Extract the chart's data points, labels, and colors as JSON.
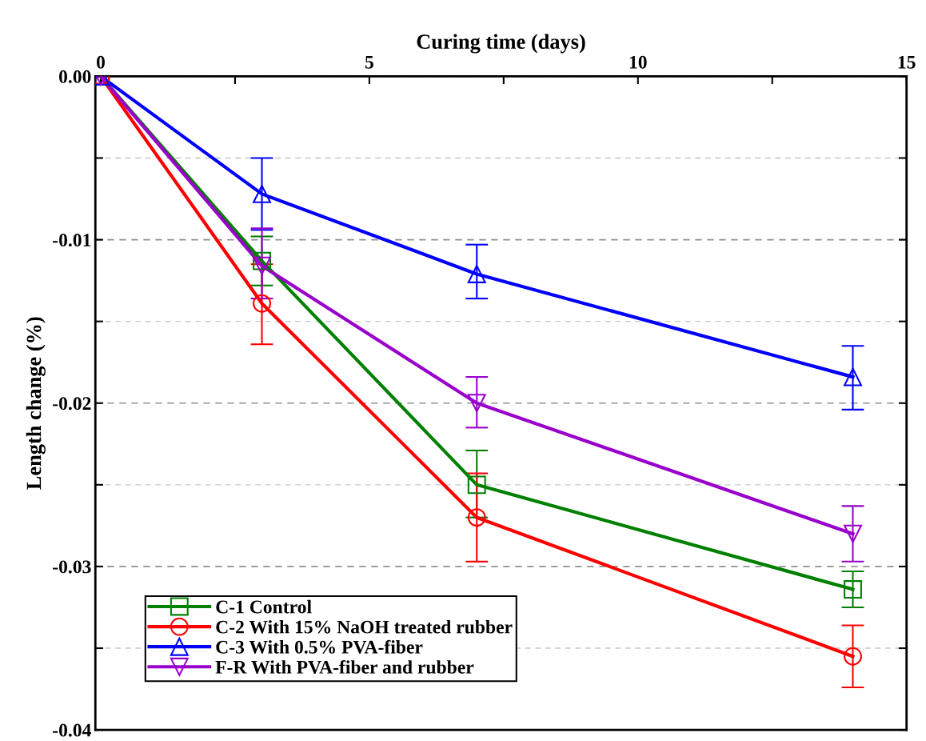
{
  "chart_data": {
    "type": "line",
    "xlabel": "Curing time (days)",
    "ylabel": "Length change (%)",
    "x": [
      0,
      3,
      7,
      14
    ],
    "xlim": [
      -0.1,
      15
    ],
    "xticks": [
      0,
      {
        "value": 2.5,
        "label": null
      },
      5,
      {
        "value": 7.5,
        "label": null
      },
      10,
      {
        "value": 12.5,
        "label": null
      },
      15
    ],
    "ylim": [
      -0.04,
      0
    ],
    "yticks": [
      {
        "value": 0,
        "label": "0.00"
      },
      {
        "value": -0.005,
        "label": null
      },
      -0.01,
      {
        "value": -0.015,
        "label": null
      },
      -0.02,
      {
        "value": -0.025,
        "label": null
      },
      -0.03,
      {
        "value": -0.035,
        "label": null
      },
      -0.04
    ],
    "grid": "y",
    "legend": "bottom left",
    "line_style": "solid",
    "series": [
      {
        "name": "C-1 Control",
        "color": "#008000",
        "marker": "square",
        "values": [
          0,
          -0.0113,
          -0.025,
          -0.0314
        ],
        "errors": [
          null,
          [
            -0.0128,
            -0.0098
          ],
          [
            -0.027,
            -0.0229
          ],
          [
            -0.0325,
            -0.0303
          ]
        ]
      },
      {
        "name": "C-2 With 15% NaOH treated rubber",
        "color": "#ff0000",
        "marker": "circle",
        "values": [
          0,
          -0.0139,
          -0.027,
          -0.0355
        ],
        "errors": [
          null,
          [
            -0.0164,
            -0.0115
          ],
          [
            -0.0297,
            -0.0243
          ],
          [
            -0.0374,
            -0.0336
          ]
        ]
      },
      {
        "name": "C-3 With 0.5% PVA-fiber",
        "color": "#0000ff",
        "marker": "triangle",
        "values": [
          0,
          -0.0072,
          -0.0121,
          -0.0184
        ],
        "errors": [
          null,
          [
            -0.0094,
            -0.005
          ],
          [
            -0.0136,
            -0.0103
          ],
          [
            -0.0204,
            -0.0165
          ]
        ]
      },
      {
        "name": "F-R With PVA-fiber and rubber",
        "color": "#9900cc",
        "marker": "triangle_down",
        "values": [
          0,
          -0.0116,
          -0.02,
          -0.028
        ],
        "errors": [
          null,
          [
            -0.0136,
            -0.0093
          ],
          [
            -0.0215,
            -0.0184
          ],
          [
            -0.0297,
            -0.0263
          ]
        ]
      }
    ]
  }
}
